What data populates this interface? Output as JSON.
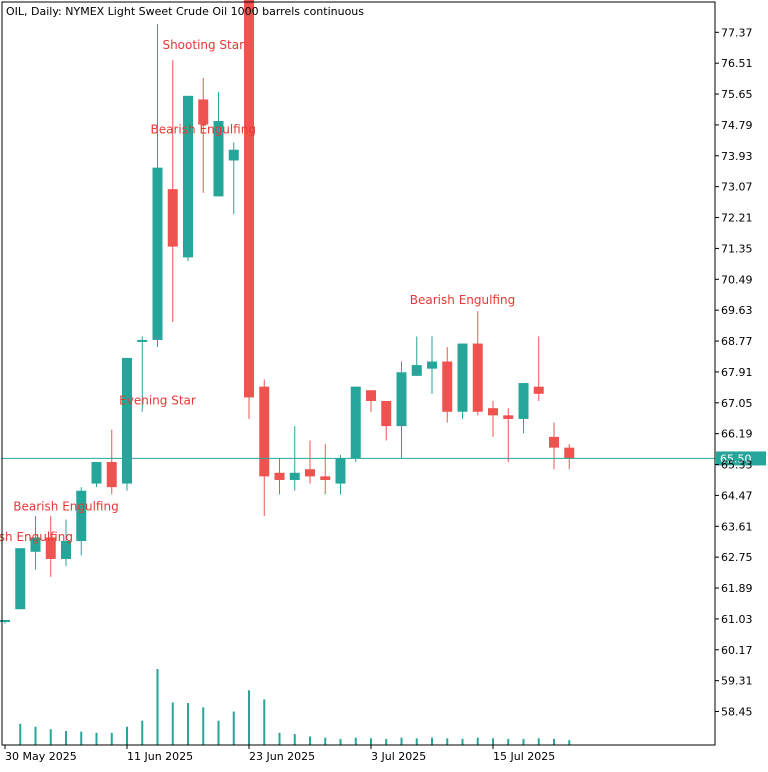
{
  "header": {
    "title": "OIL, Daily:  NYMEX Light Sweet Crude Oil 1000 barrels continuous"
  },
  "colors": {
    "bull": "#26a69a",
    "bear": "#ef5350",
    "pattern_text": "#e53935",
    "axis": "#000000",
    "last_price_line": "#26a69a"
  },
  "chart_data": {
    "type": "candlestick",
    "title": "OIL, Daily:  NYMEX Light Sweet Crude Oil 1000 barrels continuous",
    "y_range": [
      57.6,
      78.3
    ],
    "grid": false,
    "y_ticks": [
      "77.37",
      "76.51",
      "75.65",
      "74.79",
      "73.93",
      "73.07",
      "72.21",
      "71.35",
      "70.49",
      "69.63",
      "68.77",
      "67.91",
      "67.05",
      "66.19",
      "65.33",
      "64.47",
      "63.61",
      "62.75",
      "61.89",
      "61.03",
      "60.17",
      "59.31",
      "58.45"
    ],
    "x_ticks": [
      {
        "index": 0,
        "label": "30 May 2025"
      },
      {
        "index": 8,
        "label": "11 Jun 2025"
      },
      {
        "index": 16,
        "label": "23 Jun 2025"
      },
      {
        "index": 24,
        "label": "3 Jul 2025"
      },
      {
        "index": 32,
        "label": "15 Jul 2025"
      }
    ],
    "last_price": 65.5,
    "last_price_label": "65.50",
    "candles": [
      {
        "o": 61.0,
        "h": 61.0,
        "l": 60.9,
        "c": 61.0,
        "v": 0
      },
      {
        "o": 61.3,
        "h": 63.0,
        "l": 61.3,
        "c": 63.0,
        "v": 0.35
      },
      {
        "o": 62.9,
        "h": 63.9,
        "l": 62.4,
        "c": 63.3,
        "v": 0.3
      },
      {
        "o": 63.3,
        "h": 63.9,
        "l": 62.2,
        "c": 62.7,
        "v": 0.26
      },
      {
        "o": 62.7,
        "h": 63.8,
        "l": 62.5,
        "c": 63.2,
        "v": 0.23
      },
      {
        "o": 63.2,
        "h": 64.7,
        "l": 62.8,
        "c": 64.6,
        "v": 0.22
      },
      {
        "o": 64.8,
        "h": 65.4,
        "l": 64.7,
        "c": 65.4,
        "v": 0.2
      },
      {
        "o": 65.4,
        "h": 66.3,
        "l": 64.5,
        "c": 64.7,
        "v": 0.2
      },
      {
        "o": 64.8,
        "h": 68.3,
        "l": 64.6,
        "c": 68.3,
        "v": 0.3
      },
      {
        "o": 68.8,
        "h": 68.9,
        "l": 66.8,
        "c": 68.8,
        "v": 0.4
      },
      {
        "o": 68.8,
        "h": 77.6,
        "l": 68.6,
        "c": 73.6,
        "v": 1.25
      },
      {
        "o": 73.0,
        "h": 76.6,
        "l": 69.3,
        "c": 71.4,
        "v": 0.7
      },
      {
        "o": 71.1,
        "h": 75.6,
        "l": 71.0,
        "c": 75.6,
        "v": 0.69
      },
      {
        "o": 75.5,
        "h": 76.1,
        "l": 72.9,
        "c": 74.8,
        "v": 0.62
      },
      {
        "o": 72.8,
        "h": 75.7,
        "l": 72.8,
        "c": 74.9,
        "v": 0.4
      },
      {
        "o": 73.8,
        "h": 74.3,
        "l": 72.3,
        "c": 74.1,
        "v": 0.55
      },
      {
        "o": 78.3,
        "h": 78.3,
        "l": 66.6,
        "c": 67.2,
        "v": 0.9
      },
      {
        "o": 67.5,
        "h": 67.7,
        "l": 63.9,
        "c": 65.0,
        "v": 0.75
      },
      {
        "o": 65.1,
        "h": 65.5,
        "l": 64.5,
        "c": 64.9,
        "v": 0.2
      },
      {
        "o": 64.9,
        "h": 66.4,
        "l": 64.6,
        "c": 65.1,
        "v": 0.18
      },
      {
        "o": 65.2,
        "h": 66.0,
        "l": 64.8,
        "c": 65.0,
        "v": 0.14
      },
      {
        "o": 65.0,
        "h": 65.9,
        "l": 64.5,
        "c": 64.9,
        "v": 0.12
      },
      {
        "o": 64.8,
        "h": 65.6,
        "l": 64.5,
        "c": 65.5,
        "v": 0.1
      },
      {
        "o": 65.5,
        "h": 67.5,
        "l": 65.4,
        "c": 67.5,
        "v": 0.12
      },
      {
        "o": 67.4,
        "h": 67.4,
        "l": 66.8,
        "c": 67.1,
        "v": 0.11
      },
      {
        "o": 67.1,
        "h": 67.1,
        "l": 66.0,
        "c": 66.4,
        "v": 0.1
      },
      {
        "o": 66.4,
        "h": 68.2,
        "l": 65.5,
        "c": 67.9,
        "v": 0.12
      },
      {
        "o": 67.8,
        "h": 68.9,
        "l": 67.8,
        "c": 68.1,
        "v": 0.11
      },
      {
        "o": 68.0,
        "h": 68.9,
        "l": 67.3,
        "c": 68.2,
        "v": 0.12
      },
      {
        "o": 68.2,
        "h": 68.6,
        "l": 66.5,
        "c": 66.8,
        "v": 0.11
      },
      {
        "o": 66.8,
        "h": 68.7,
        "l": 66.6,
        "c": 68.7,
        "v": 0.1
      },
      {
        "o": 68.7,
        "h": 69.6,
        "l": 66.7,
        "c": 66.8,
        "v": 0.12
      },
      {
        "o": 66.9,
        "h": 67.1,
        "l": 66.1,
        "c": 66.7,
        "v": 0.11
      },
      {
        "o": 66.7,
        "h": 66.9,
        "l": 65.4,
        "c": 66.6,
        "v": 0.1
      },
      {
        "o": 66.6,
        "h": 67.6,
        "l": 66.2,
        "c": 67.6,
        "v": 0.1
      },
      {
        "o": 67.5,
        "h": 68.9,
        "l": 67.1,
        "c": 67.3,
        "v": 0.11
      },
      {
        "o": 66.1,
        "h": 66.5,
        "l": 65.2,
        "c": 65.8,
        "v": 0.1
      },
      {
        "o": 65.8,
        "h": 65.9,
        "l": 65.2,
        "c": 65.5,
        "v": 0.08
      }
    ],
    "annotations": [
      {
        "text": "Shooting Star",
        "candle": 13,
        "value": 76.9
      },
      {
        "text": "Bearish Engulfing",
        "candle": 13,
        "value": 74.55
      },
      {
        "text": "Evening Star",
        "candle": 10,
        "value": 67.0
      },
      {
        "text": "Bearish Engulfing",
        "candle": 30,
        "value": 69.8
      },
      {
        "text": "Bearish Engulfing",
        "candle": 4,
        "value": 64.05
      },
      {
        "text": "Bearish Engulfing",
        "candle": 1,
        "value": 63.2
      }
    ]
  }
}
